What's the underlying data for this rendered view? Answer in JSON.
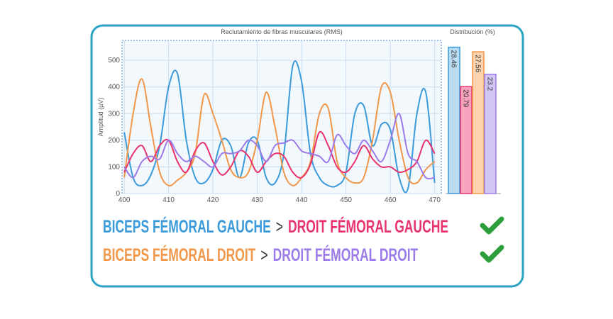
{
  "chart_data": [
    {
      "type": "line",
      "title": "Reclutamiento de fibras musculares (RMS)",
      "y_label": "Amplitud (µV)",
      "x": [
        400,
        402,
        404,
        406,
        408,
        410,
        412,
        414,
        416,
        418,
        420,
        422,
        424,
        426,
        428,
        430,
        432,
        434,
        436,
        438,
        440,
        442,
        444,
        446,
        448,
        450,
        452,
        454,
        456,
        458,
        460,
        462,
        464,
        466,
        468,
        470
      ],
      "xlim": [
        399.5,
        471.5
      ],
      "xticks": [
        400,
        410,
        420,
        430,
        440,
        450,
        460,
        470
      ],
      "ylim": [
        0,
        575
      ],
      "yticks": [
        0,
        100,
        200,
        300,
        400,
        500
      ],
      "grid": true,
      "series": [
        {
          "color": "#3b9ad9",
          "values": [
            230,
            60,
            30,
            70,
            180,
            400,
            450,
            200,
            60,
            40,
            90,
            200,
            180,
            60,
            190,
            200,
            60,
            40,
            150,
            480,
            420,
            150,
            60,
            30,
            30,
            80,
            300,
            330,
            180,
            260,
            240,
            60,
            20,
            300,
            380,
            40
          ]
        },
        {
          "color": "#f0974a",
          "values": [
            60,
            300,
            430,
            250,
            80,
            30,
            50,
            80,
            150,
            370,
            300,
            200,
            90,
            60,
            80,
            200,
            380,
            250,
            80,
            30,
            60,
            120,
            300,
            320,
            120,
            60,
            40,
            60,
            200,
            400,
            380,
            200,
            60,
            40,
            90,
            120
          ]
        },
        {
          "color": "#e8336d",
          "values": [
            80,
            150,
            180,
            120,
            180,
            200,
            120,
            80,
            160,
            190,
            120,
            70,
            100,
            160,
            140,
            80,
            120,
            150,
            140,
            80,
            60,
            110,
            230,
            180,
            100,
            80,
            120,
            180,
            130,
            100,
            100,
            80,
            90,
            120,
            200,
            150
          ]
        },
        {
          "color": "#9b7be8",
          "values": [
            100,
            60,
            120,
            140,
            130,
            200,
            150,
            120,
            140,
            120,
            100,
            150,
            150,
            160,
            200,
            180,
            120,
            180,
            190,
            200,
            160,
            150,
            140,
            120,
            220,
            180,
            150,
            200,
            160,
            120,
            200,
            300,
            150,
            120,
            60,
            60
          ]
        }
      ]
    },
    {
      "type": "bar",
      "title": "Distribución (%)",
      "values": [
        28.46,
        20.79,
        27.56,
        23.2
      ],
      "colors": [
        "#3b9ad9",
        "#e8336d",
        "#f0974a",
        "#9b7be8"
      ],
      "fills": [
        "#b9dcf3",
        "#f7a3bd",
        "#fcd3ad",
        "#d3c6f6"
      ],
      "ylim": [
        0,
        29.5
      ]
    }
  ],
  "comparisons": [
    {
      "left": "BICEPS FÉMORAL GAUCHE",
      "separator": ">",
      "right": "DROIT FÉMORAL GAUCHE"
    },
    {
      "left": "BICEPS FÉMORAL DROIT",
      "separator": ">",
      "right": "DROIT FÉMORAL DROIT"
    }
  ]
}
